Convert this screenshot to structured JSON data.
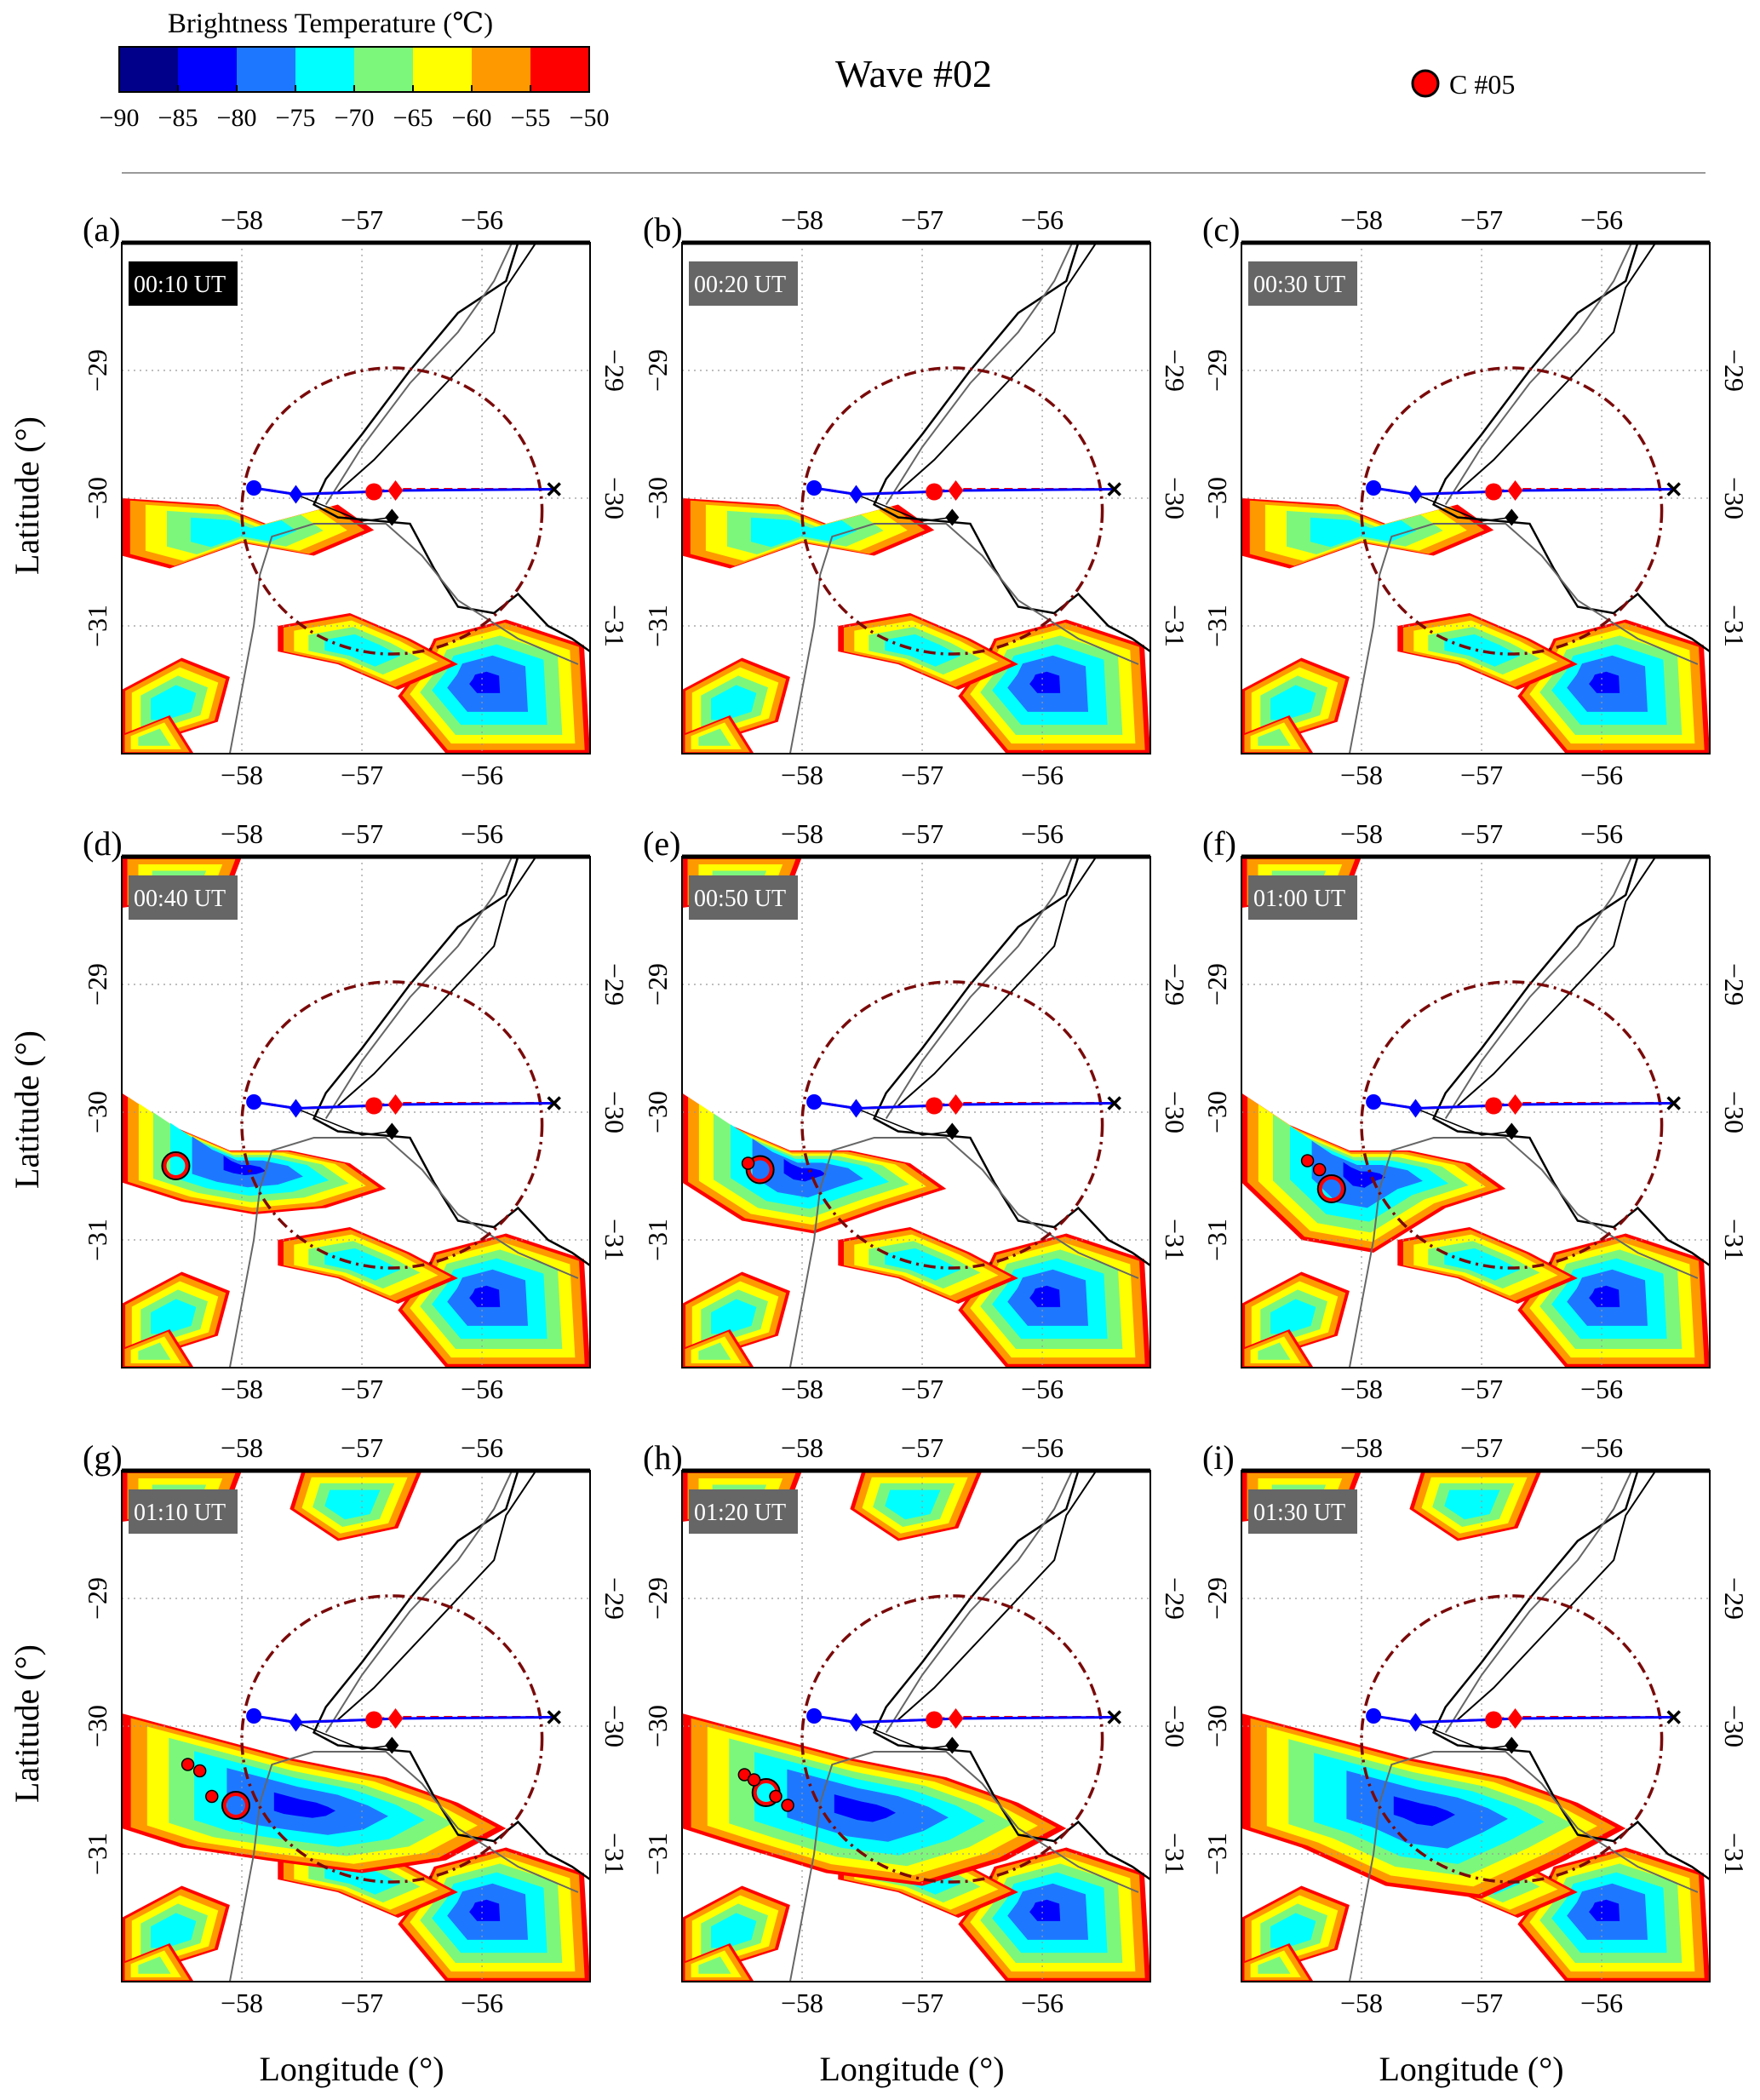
{
  "figure": {
    "title": "Wave #02",
    "colorbar": {
      "title": "Brightness Temperature (℃)",
      "ticks": [
        "−90",
        "−85",
        "−80",
        "−75",
        "−70",
        "−65",
        "−60",
        "−55",
        "−50"
      ],
      "colors": [
        "#00008b",
        "#0000ff",
        "#1e78ff",
        "#00ffff",
        "#7cf77c",
        "#ffff00",
        "#ff9900",
        "#ff0000"
      ],
      "range": [
        -90,
        -50
      ]
    },
    "legend": {
      "label": "C #05",
      "marker_color": "#ff0000"
    },
    "axes": {
      "xlabel": "Longitude (°)",
      "ylabel": "Latitude (°)",
      "lon_ticks": [
        "−58",
        "−57",
        "−56"
      ],
      "lat_ticks": [
        "−29",
        "−30",
        "−31"
      ],
      "lon_range": [
        -59.0,
        -55.1
      ],
      "lat_range": [
        -32.0,
        -28.0
      ]
    },
    "colors": {
      "circle": "#7a0a0a",
      "track_blue": "#0000ff",
      "track_red": "#ff0000",
      "coast": "#000000",
      "border": "#666666"
    },
    "panels": [
      {
        "letter": "(a)",
        "time": "00:10 UT",
        "label_bg": "#000000",
        "cells": []
      },
      {
        "letter": "(b)",
        "time": "00:20 UT",
        "label_bg": "#666666",
        "cells": []
      },
      {
        "letter": "(c)",
        "time": "00:30 UT",
        "label_bg": "#666666",
        "cells": []
      },
      {
        "letter": "(d)",
        "time": "00:40 UT",
        "label_bg": "#666666",
        "cells": [
          {
            "lon": -58.55,
            "lat": -30.42,
            "big": true
          }
        ]
      },
      {
        "letter": "(e)",
        "time": "00:50 UT",
        "label_bg": "#666666",
        "cells": [
          {
            "lon": -58.35,
            "lat": -30.45,
            "big": true
          },
          {
            "lon": -58.45,
            "lat": -30.4,
            "big": false
          }
        ]
      },
      {
        "letter": "(f)",
        "time": "01:00 UT",
        "label_bg": "#666666",
        "cells": [
          {
            "lon": -58.25,
            "lat": -30.6,
            "big": true
          },
          {
            "lon": -58.45,
            "lat": -30.38,
            "big": false
          },
          {
            "lon": -58.35,
            "lat": -30.45,
            "big": false
          }
        ]
      },
      {
        "letter": "(g)",
        "time": "01:10 UT",
        "label_bg": "#666666",
        "cells": [
          {
            "lon": -58.05,
            "lat": -30.62,
            "big": true
          },
          {
            "lon": -58.45,
            "lat": -30.3,
            "big": false
          },
          {
            "lon": -58.35,
            "lat": -30.35,
            "big": false
          },
          {
            "lon": -58.25,
            "lat": -30.55,
            "big": false
          }
        ]
      },
      {
        "letter": "(h)",
        "time": "01:20 UT",
        "label_bg": "#666666",
        "cells": [
          {
            "lon": -58.3,
            "lat": -30.52,
            "big": true
          },
          {
            "lon": -58.48,
            "lat": -30.38,
            "big": false
          },
          {
            "lon": -58.4,
            "lat": -30.42,
            "big": false
          },
          {
            "lon": -58.22,
            "lat": -30.55,
            "big": false
          },
          {
            "lon": -58.12,
            "lat": -30.62,
            "big": false
          }
        ]
      },
      {
        "letter": "(i)",
        "time": "01:30 UT",
        "label_bg": "#666666",
        "cells": []
      }
    ]
  }
}
